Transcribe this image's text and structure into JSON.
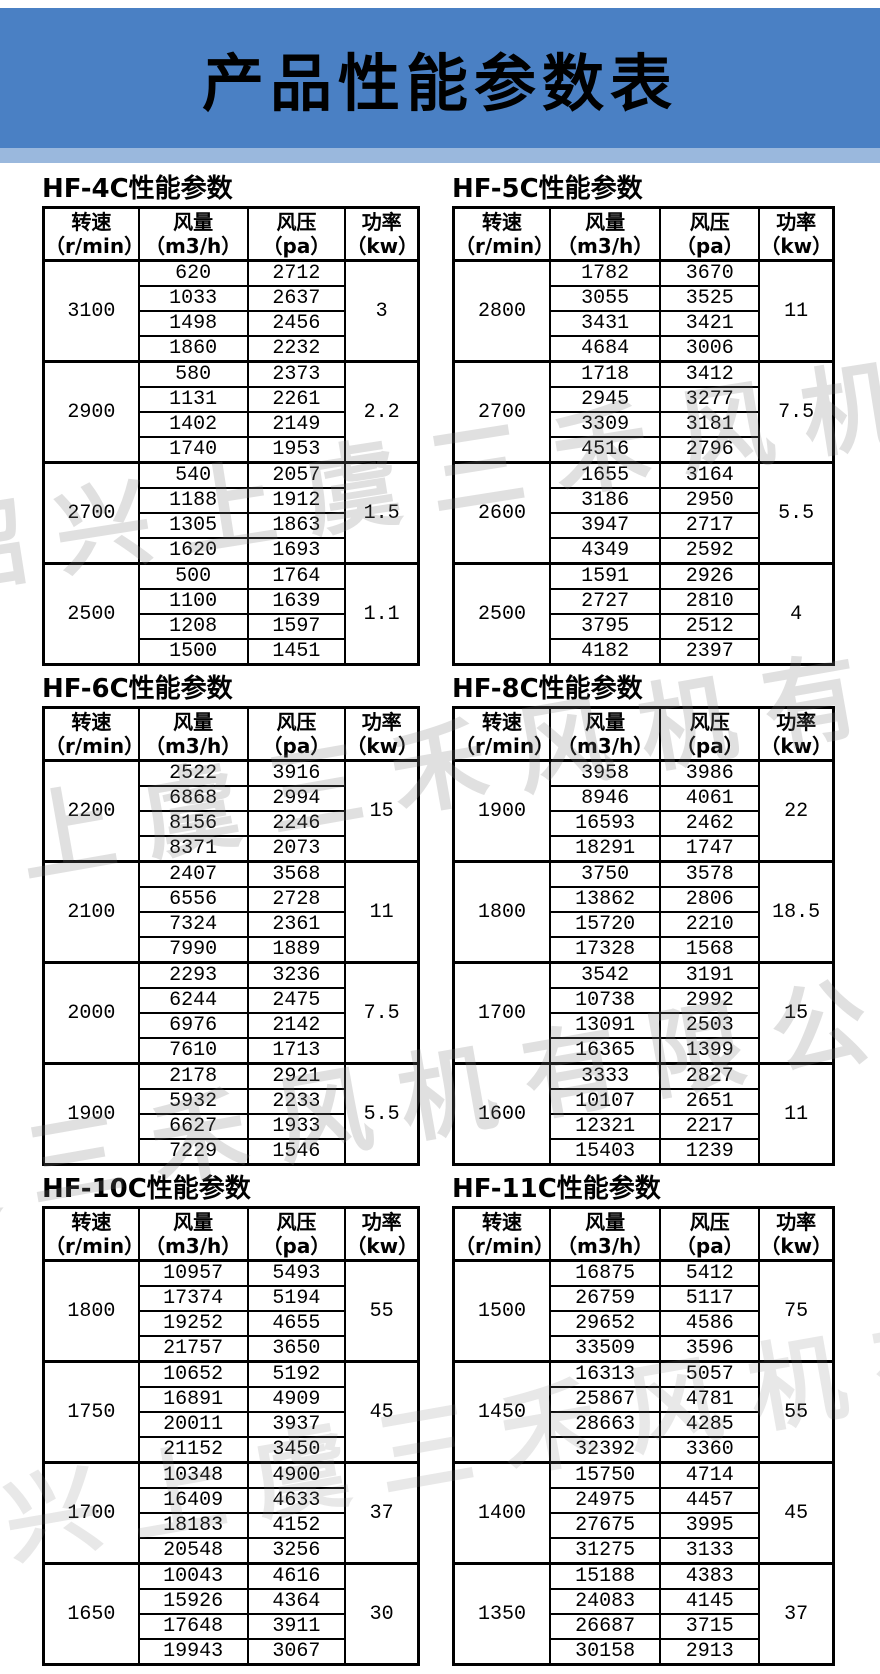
{
  "header": {
    "title": "产品性能参数表"
  },
  "colors": {
    "banner_blue": "#4a80c4",
    "banner_light": "#9ab8dd",
    "table_border": "#000000",
    "watermark": "rgba(125,125,125,0.24)"
  },
  "watermark_text": "绍兴上虞三禾风机有限公司",
  "column_headers": [
    {
      "name": "转速",
      "unit": "（r/min）"
    },
    {
      "name": "风量",
      "unit": "（m3/h）"
    },
    {
      "name": "风压",
      "unit": "（pa）"
    },
    {
      "name": "功率",
      "unit": "（kw）"
    }
  ],
  "tables": [
    {
      "id": "hf-4c",
      "title": "HF-4C性能参数",
      "groups": [
        {
          "speed": "3100",
          "power": "3",
          "rows": [
            [
              "620",
              "2712"
            ],
            [
              "1033",
              "2637"
            ],
            [
              "1498",
              "2456"
            ],
            [
              "1860",
              "2232"
            ]
          ]
        },
        {
          "speed": "2900",
          "power": "2.2",
          "rows": [
            [
              "580",
              "2373"
            ],
            [
              "1131",
              "2261"
            ],
            [
              "1402",
              "2149"
            ],
            [
              "1740",
              "1953"
            ]
          ]
        },
        {
          "speed": "2700",
          "power": "1.5",
          "rows": [
            [
              "540",
              "2057"
            ],
            [
              "1188",
              "1912"
            ],
            [
              "1305",
              "1863"
            ],
            [
              "1620",
              "1693"
            ]
          ]
        },
        {
          "speed": "2500",
          "power": "1.1",
          "rows": [
            [
              "500",
              "1764"
            ],
            [
              "1100",
              "1639"
            ],
            [
              "1208",
              "1597"
            ],
            [
              "1500",
              "1451"
            ]
          ]
        }
      ]
    },
    {
      "id": "hf-5c",
      "title": "HF-5C性能参数",
      "groups": [
        {
          "speed": "2800",
          "power": "11",
          "rows": [
            [
              "1782",
              "3670"
            ],
            [
              "3055",
              "3525"
            ],
            [
              "3431",
              "3421"
            ],
            [
              "4684",
              "3006"
            ]
          ]
        },
        {
          "speed": "2700",
          "power": "7.5",
          "rows": [
            [
              "1718",
              "3412"
            ],
            [
              "2945",
              "3277"
            ],
            [
              "3309",
              "3181"
            ],
            [
              "4516",
              "2796"
            ]
          ]
        },
        {
          "speed": "2600",
          "power": "5.5",
          "rows": [
            [
              "1655",
              "3164"
            ],
            [
              "3186",
              "2950"
            ],
            [
              "3947",
              "2717"
            ],
            [
              "4349",
              "2592"
            ]
          ]
        },
        {
          "speed": "2500",
          "power": "4",
          "rows": [
            [
              "1591",
              "2926"
            ],
            [
              "2727",
              "2810"
            ],
            [
              "3795",
              "2512"
            ],
            [
              "4182",
              "2397"
            ]
          ]
        }
      ]
    },
    {
      "id": "hf-6c",
      "title": "HF-6C性能参数",
      "groups": [
        {
          "speed": "2200",
          "power": "15",
          "rows": [
            [
              "2522",
              "3916"
            ],
            [
              "6868",
              "2994"
            ],
            [
              "8156",
              "2246"
            ],
            [
              "8371",
              "2073"
            ]
          ]
        },
        {
          "speed": "2100",
          "power": "11",
          "rows": [
            [
              "2407",
              "3568"
            ],
            [
              "6556",
              "2728"
            ],
            [
              "7324",
              "2361"
            ],
            [
              "7990",
              "1889"
            ]
          ]
        },
        {
          "speed": "2000",
          "power": "7.5",
          "rows": [
            [
              "2293",
              "3236"
            ],
            [
              "6244",
              "2475"
            ],
            [
              "6976",
              "2142"
            ],
            [
              "7610",
              "1713"
            ]
          ]
        },
        {
          "speed": "1900",
          "power": "5.5",
          "rows": [
            [
              "2178",
              "2921"
            ],
            [
              "5932",
              "2233"
            ],
            [
              "6627",
              "1933"
            ],
            [
              "7229",
              "1546"
            ]
          ]
        }
      ]
    },
    {
      "id": "hf-8c",
      "title": "HF-8C性能参数",
      "groups": [
        {
          "speed": "1900",
          "power": "22",
          "rows": [
            [
              "3958",
              "3986"
            ],
            [
              "8946",
              "4061"
            ],
            [
              "16593",
              "2462"
            ],
            [
              "18291",
              "1747"
            ]
          ]
        },
        {
          "speed": "1800",
          "power": "18.5",
          "rows": [
            [
              "3750",
              "3578"
            ],
            [
              "13862",
              "2806"
            ],
            [
              "15720",
              "2210"
            ],
            [
              "17328",
              "1568"
            ]
          ]
        },
        {
          "speed": "1700",
          "power": "15",
          "rows": [
            [
              "3542",
              "3191"
            ],
            [
              "10738",
              "2992"
            ],
            [
              "13091",
              "2503"
            ],
            [
              "16365",
              "1399"
            ]
          ]
        },
        {
          "speed": "1600",
          "power": "11",
          "rows": [
            [
              "3333",
              "2827"
            ],
            [
              "10107",
              "2651"
            ],
            [
              "12321",
              "2217"
            ],
            [
              "15403",
              "1239"
            ]
          ]
        }
      ]
    },
    {
      "id": "hf-10c",
      "title": "HF-10C性能参数",
      "groups": [
        {
          "speed": "1800",
          "power": "55",
          "rows": [
            [
              "10957",
              "5493"
            ],
            [
              "17374",
              "5194"
            ],
            [
              "19252",
              "4655"
            ],
            [
              "21757",
              "3650"
            ]
          ]
        },
        {
          "speed": "1750",
          "power": "45",
          "rows": [
            [
              "10652",
              "5192"
            ],
            [
              "16891",
              "4909"
            ],
            [
              "20011",
              "3937"
            ],
            [
              "21152",
              "3450"
            ]
          ]
        },
        {
          "speed": "1700",
          "power": "37",
          "rows": [
            [
              "10348",
              "4900"
            ],
            [
              "16409",
              "4633"
            ],
            [
              "18183",
              "4152"
            ],
            [
              "20548",
              "3256"
            ]
          ]
        },
        {
          "speed": "1650",
          "power": "30",
          "rows": [
            [
              "10043",
              "4616"
            ],
            [
              "15926",
              "4364"
            ],
            [
              "17648",
              "3911"
            ],
            [
              "19943",
              "3067"
            ]
          ]
        }
      ]
    },
    {
      "id": "hf-11c",
      "title": "HF-11C性能参数",
      "groups": [
        {
          "speed": "1500",
          "power": "75",
          "rows": [
            [
              "16875",
              "5412"
            ],
            [
              "26759",
              "5117"
            ],
            [
              "29652",
              "4586"
            ],
            [
              "33509",
              "3596"
            ]
          ]
        },
        {
          "speed": "1450",
          "power": "55",
          "rows": [
            [
              "16313",
              "5057"
            ],
            [
              "25867",
              "4781"
            ],
            [
              "28663",
              "4285"
            ],
            [
              "32392",
              "3360"
            ]
          ]
        },
        {
          "speed": "1400",
          "power": "45",
          "rows": [
            [
              "15750",
              "4714"
            ],
            [
              "24975",
              "4457"
            ],
            [
              "27675",
              "3995"
            ],
            [
              "31275",
              "3133"
            ]
          ]
        },
        {
          "speed": "1350",
          "power": "37",
          "rows": [
            [
              "15188",
              "4383"
            ],
            [
              "24083",
              "4145"
            ],
            [
              "26687",
              "3715"
            ],
            [
              "30158",
              "2913"
            ]
          ]
        }
      ]
    }
  ]
}
